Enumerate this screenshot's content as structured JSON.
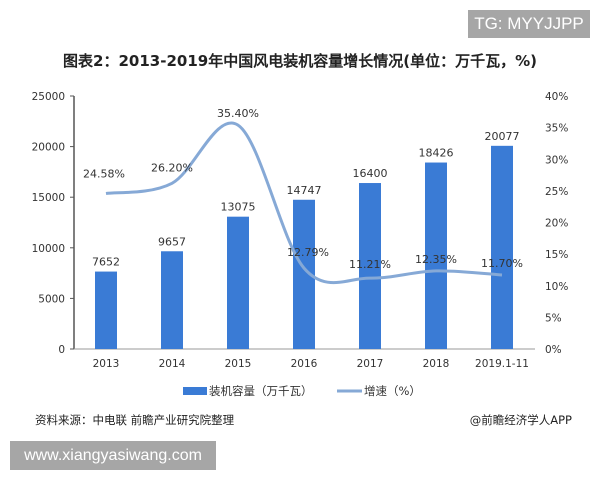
{
  "watermark_top": "TG: MYYJJPP",
  "watermark_bottom": "www.xiangyasiwang.com",
  "source": "资料来源：中电联 前瞻产业研究院整理",
  "credit": "@前瞻经济学人APP",
  "chart_data": {
    "type": "bar+line",
    "title": "图表2：2013-2019年中国风电装机容量增长情况(单位：万千瓦，%)",
    "categories": [
      "2013",
      "2014",
      "2015",
      "2016",
      "2017",
      "2018",
      "2019.1-11"
    ],
    "series": [
      {
        "name": "装机容量（万千瓦）",
        "type": "bar",
        "axis": "left",
        "values": [
          7652,
          9657,
          13075,
          14747,
          16400,
          18426,
          20077
        ],
        "labels": [
          "7652",
          "9657",
          "13075",
          "14747",
          "16400",
          "18426",
          "20077"
        ],
        "color": "#3a7bd5"
      },
      {
        "name": "增速（%）",
        "type": "line",
        "axis": "right",
        "smooth": true,
        "values": [
          24.58,
          26.2,
          35.4,
          12.79,
          11.21,
          12.35,
          11.7
        ],
        "labels": [
          "24.58%",
          "26.20%",
          "35.40%",
          "12.79%",
          "11.21%",
          "12.35%",
          "11.70%"
        ],
        "color": "#86a9d6"
      }
    ],
    "left_axis": {
      "ylim": [
        0,
        25000
      ],
      "ticks": [
        "0",
        "5000",
        "10000",
        "15000",
        "20000",
        "25000"
      ]
    },
    "right_axis": {
      "ylim": [
        0,
        40
      ],
      "ticks": [
        "0%",
        "5%",
        "10%",
        "15%",
        "20%",
        "25%",
        "30%",
        "35%",
        "40%"
      ]
    },
    "grid": false,
    "legend": "bottom"
  }
}
